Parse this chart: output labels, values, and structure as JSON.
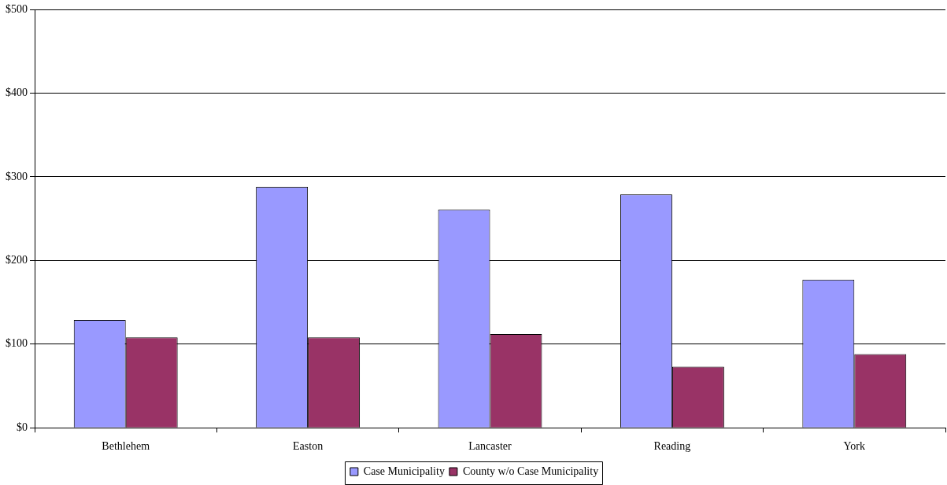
{
  "chart_data": {
    "type": "bar",
    "categories": [
      "Bethlehem",
      "Easton",
      "Lancaster",
      "Reading",
      "York"
    ],
    "series": [
      {
        "name": "Case Municipality",
        "color": "#9999ff",
        "values": [
          129,
          288,
          261,
          279,
          177
        ]
      },
      {
        "name": "County w/o Case Municipality",
        "color": "#993366",
        "values": [
          108,
          108,
          112,
          73,
          88
        ]
      }
    ],
    "ylim": [
      0,
      500
    ],
    "yticks": [
      {
        "value": 0,
        "label": "$0"
      },
      {
        "value": 100,
        "label": "$100"
      },
      {
        "value": 200,
        "label": "$200"
      },
      {
        "value": 300,
        "label": "$300"
      },
      {
        "value": 400,
        "label": "$400"
      },
      {
        "value": 500,
        "label": "$500"
      }
    ],
    "grid": "y",
    "legend": "bottom"
  }
}
